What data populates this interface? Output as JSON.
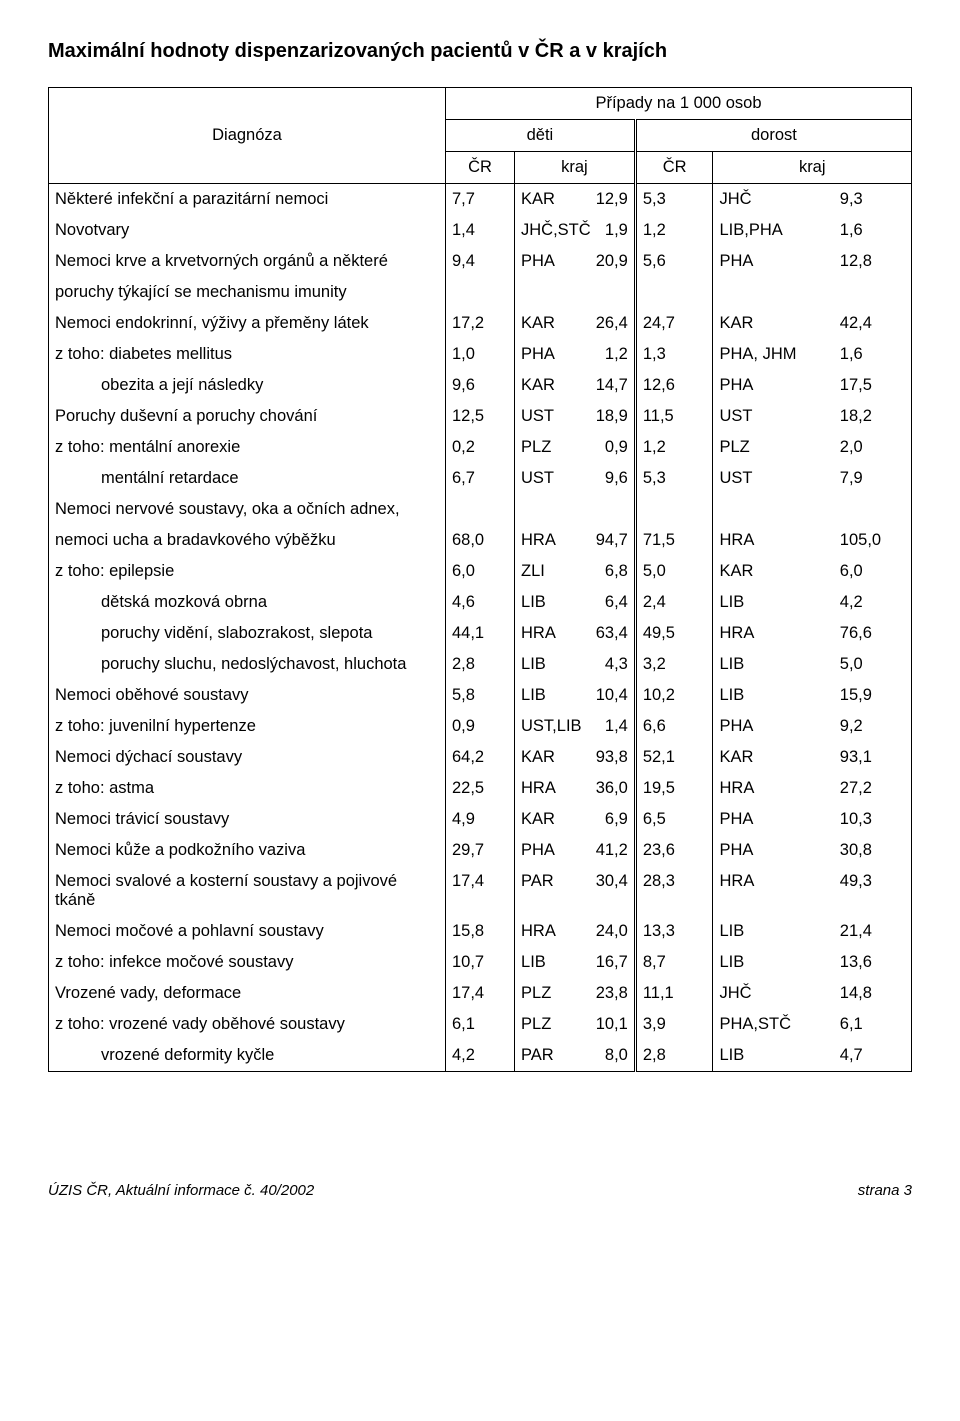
{
  "title": "Maximální hodnoty dispenzarizovaných pacientů v ČR a v krajích",
  "header": {
    "supertitle": "Případy na 1 000 osob",
    "diag": "Diagnóza",
    "deti": "děti",
    "dorost": "dorost",
    "cr": "ČR",
    "kraj": "kraj"
  },
  "rows": [
    {
      "d": "Některé infekční a parazitární nemoci",
      "c1": "7,7",
      "k1": "KAR",
      "v1": "12,9",
      "c2": "5,3",
      "k2": "JHČ",
      "v2": "9,3"
    },
    {
      "d": "Novotvary",
      "c1": "1,4",
      "k1": "JHČ,STČ",
      "v1": "1,9",
      "c2": "1,2",
      "k2": "LIB,PHA",
      "v2": "1,6"
    },
    {
      "d": "Nemoci krve a krvetvorných orgánů a některé",
      "c1": "9,4",
      "k1": "PHA",
      "v1": "20,9",
      "c2": "5,6",
      "k2": "PHA",
      "v2": "12,8"
    },
    {
      "d": "poruchy týkající se mechanismu imunity",
      "empty": true
    },
    {
      "d": "Nemoci endokrinní, výživy a přeměny látek",
      "c1": "17,2",
      "k1": "KAR",
      "v1": "26,4",
      "c2": "24,7",
      "k2": "KAR",
      "v2": "42,4"
    },
    {
      "d": "z toho: diabetes mellitus",
      "c1": "1,0",
      "k1": "PHA",
      "v1": "1,2",
      "c2": "1,3",
      "k2": "PHA, JHM",
      "v2": "1,6"
    },
    {
      "d": "obezita a její následky",
      "indent": 1,
      "c1": "9,6",
      "k1": "KAR",
      "v1": "14,7",
      "c2": "12,6",
      "k2": "PHA",
      "v2": "17,5"
    },
    {
      "d": "Poruchy duševní a poruchy chování",
      "c1": "12,5",
      "k1": "UST",
      "v1": "18,9",
      "c2": "11,5",
      "k2": "UST",
      "v2": "18,2"
    },
    {
      "d": "z toho: mentální anorexie",
      "c1": "0,2",
      "k1": "PLZ",
      "v1": "0,9",
      "c2": "1,2",
      "k2": "PLZ",
      "v2": "2,0"
    },
    {
      "d": "mentální retardace",
      "indent": 1,
      "c1": "6,7",
      "k1": "UST",
      "v1": "9,6",
      "c2": "5,3",
      "k2": "UST",
      "v2": "7,9"
    },
    {
      "d": "Nemoci nervové soustavy, oka a očních adnex,",
      "empty": true
    },
    {
      "d": "nemoci ucha a bradavkového výběžku",
      "c1": "68,0",
      "k1": "HRA",
      "v1": "94,7",
      "c2": "71,5",
      "k2": "HRA",
      "v2": "105,0"
    },
    {
      "d": "z toho: epilepsie",
      "c1": "6,0",
      "k1": "ZLI",
      "v1": "6,8",
      "c2": "5,0",
      "k2": "KAR",
      "v2": "6,0"
    },
    {
      "d": "dětská mozková obrna",
      "indent": 1,
      "c1": "4,6",
      "k1": "LIB",
      "v1": "6,4",
      "c2": "2,4",
      "k2": "LIB",
      "v2": "4,2"
    },
    {
      "d": "poruchy vidění, slabozrakost, slepota",
      "indent": 1,
      "c1": "44,1",
      "k1": "HRA",
      "v1": "63,4",
      "c2": "49,5",
      "k2": "HRA",
      "v2": "76,6"
    },
    {
      "d": "poruchy sluchu, nedoslýchavost, hluchota",
      "indent": 1,
      "c1": "2,8",
      "k1": "LIB",
      "v1": "4,3",
      "c2": "3,2",
      "k2": "LIB",
      "v2": "5,0"
    },
    {
      "d": "Nemoci oběhové soustavy",
      "c1": "5,8",
      "k1": "LIB",
      "v1": "10,4",
      "c2": "10,2",
      "k2": "LIB",
      "v2": "15,9"
    },
    {
      "d": "z toho: juvenilní hypertenze",
      "c1": "0,9",
      "k1": "UST,LIB",
      "v1": "1,4",
      "c2": "6,6",
      "k2": "PHA",
      "v2": "9,2"
    },
    {
      "d": "Nemoci dýchací soustavy",
      "c1": "64,2",
      "k1": "KAR",
      "v1": "93,8",
      "c2": "52,1",
      "k2": "KAR",
      "v2": "93,1"
    },
    {
      "d": "z toho: astma",
      "c1": "22,5",
      "k1": "HRA",
      "v1": "36,0",
      "c2": "19,5",
      "k2": "HRA",
      "v2": "27,2"
    },
    {
      "d": "Nemoci trávicí soustavy",
      "c1": "4,9",
      "k1": "KAR",
      "v1": "6,9",
      "c2": "6,5",
      "k2": "PHA",
      "v2": "10,3"
    },
    {
      "d": "Nemoci kůže a podkožního vaziva",
      "c1": "29,7",
      "k1": "PHA",
      "v1": "41,2",
      "c2": "23,6",
      "k2": "PHA",
      "v2": "30,8"
    },
    {
      "d": "Nemoci svalové a kosterní soustavy a pojivové tkáně",
      "c1": "17,4",
      "k1": "PAR",
      "v1": "30,4",
      "c2": "28,3",
      "k2": "HRA",
      "v2": "49,3"
    },
    {
      "d": "Nemoci močové a pohlavní soustavy",
      "c1": "15,8",
      "k1": "HRA",
      "v1": "24,0",
      "c2": "13,3",
      "k2": "LIB",
      "v2": "21,4"
    },
    {
      "d": "z toho: infekce močové soustavy",
      "c1": "10,7",
      "k1": "LIB",
      "v1": "16,7",
      "c2": "8,7",
      "k2": "LIB",
      "v2": "13,6"
    },
    {
      "d": "Vrozené vady, deformace",
      "c1": "17,4",
      "k1": "PLZ",
      "v1": "23,8",
      "c2": "11,1",
      "k2": "JHČ",
      "v2": "14,8"
    },
    {
      "d": "z toho: vrozené vady oběhové soustavy",
      "c1": "6,1",
      "k1": "PLZ",
      "v1": "10,1",
      "c2": "3,9",
      "k2": "PHA,STČ",
      "v2": "6,1"
    },
    {
      "d": "vrozené deformity kyčle",
      "indent": 1,
      "c1": "4,2",
      "k1": "PAR",
      "v1": "8,0",
      "c2": "2,8",
      "k2": "LIB",
      "v2": "4,7"
    }
  ],
  "footer": {
    "left": "ÚZIS ČR, Aktuální informace č. 40/2002",
    "right": "strana 3"
  }
}
